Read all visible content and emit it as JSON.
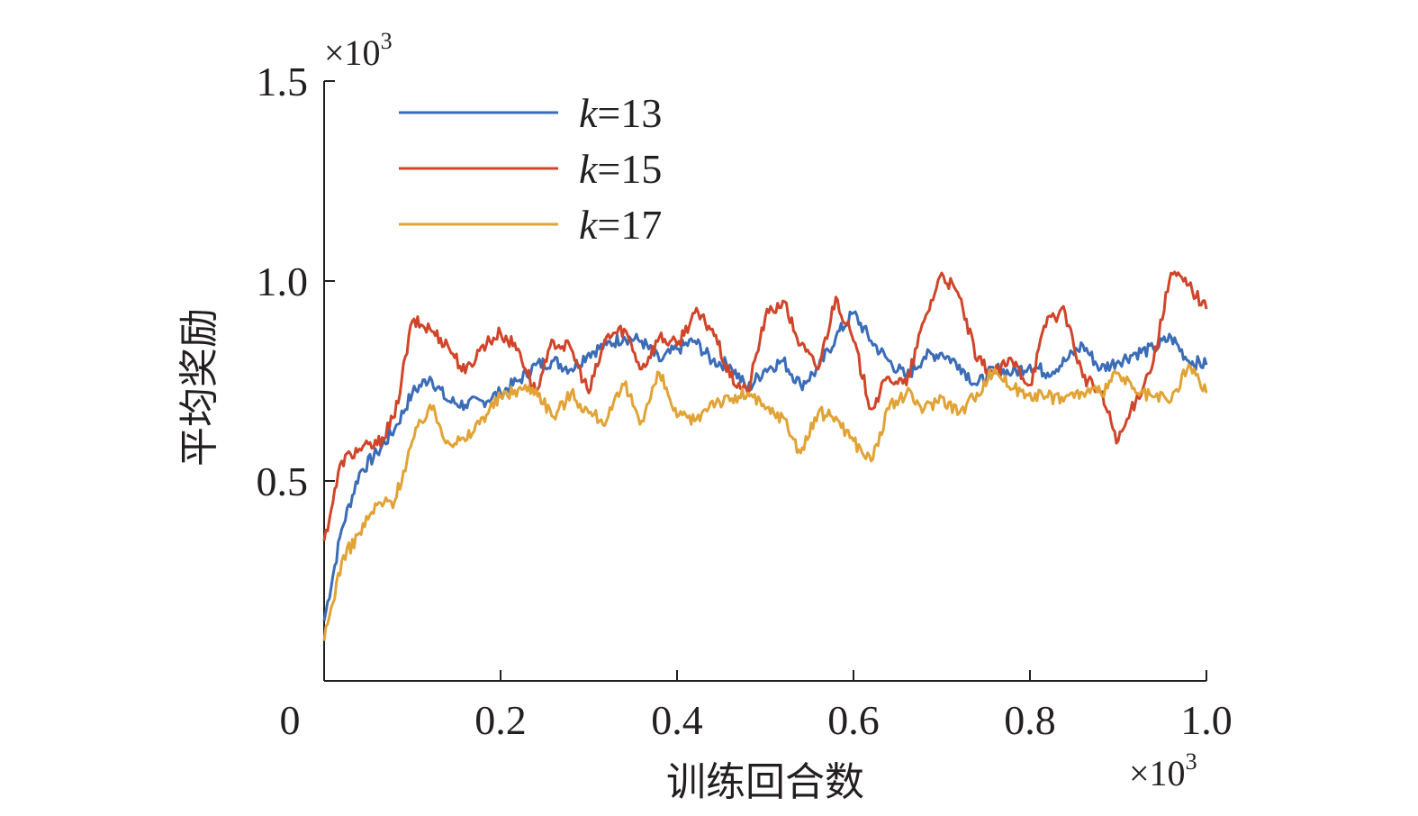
{
  "chart_data": {
    "type": "line",
    "xlabel": "训练回合数",
    "ylabel": "平均奖励",
    "x_multiplier": "×10",
    "x_multiplier_exp": "3",
    "y_multiplier": "×10",
    "y_multiplier_exp": "3",
    "xlim": [
      0,
      1.0
    ],
    "ylim": [
      0,
      1.5
    ],
    "x_ticks": [
      0,
      0.2,
      0.4,
      0.6,
      0.8,
      1.0
    ],
    "x_tick_labels": [
      "0",
      "0.2",
      "0.4",
      "0.6",
      "0.8",
      "1.0"
    ],
    "y_ticks": [
      0.5,
      1.0,
      1.5
    ],
    "y_tick_labels": [
      "0.5",
      "1.0",
      "1.5"
    ],
    "grid": false,
    "legend_position": "top-left",
    "x": [
      0.0,
      0.02,
      0.04,
      0.06,
      0.08,
      0.1,
      0.12,
      0.14,
      0.16,
      0.18,
      0.2,
      0.22,
      0.24,
      0.26,
      0.28,
      0.3,
      0.32,
      0.34,
      0.36,
      0.38,
      0.4,
      0.42,
      0.44,
      0.46,
      0.48,
      0.5,
      0.52,
      0.54,
      0.56,
      0.58,
      0.6,
      0.62,
      0.64,
      0.66,
      0.68,
      0.7,
      0.72,
      0.74,
      0.76,
      0.78,
      0.8,
      0.82,
      0.84,
      0.86,
      0.88,
      0.9,
      0.92,
      0.94,
      0.96,
      0.98,
      1.0
    ],
    "series": [
      {
        "name_italic": "k",
        "name_rest": "=13",
        "name": "k=13",
        "color": "#3b6cb7",
        "values": [
          0.15,
          0.38,
          0.52,
          0.57,
          0.63,
          0.72,
          0.76,
          0.7,
          0.69,
          0.7,
          0.72,
          0.75,
          0.79,
          0.8,
          0.78,
          0.82,
          0.84,
          0.86,
          0.85,
          0.8,
          0.83,
          0.85,
          0.8,
          0.79,
          0.73,
          0.78,
          0.8,
          0.74,
          0.78,
          0.86,
          0.92,
          0.85,
          0.8,
          0.76,
          0.81,
          0.82,
          0.79,
          0.74,
          0.78,
          0.77,
          0.79,
          0.77,
          0.8,
          0.84,
          0.78,
          0.8,
          0.82,
          0.83,
          0.86,
          0.8,
          0.79
        ]
      },
      {
        "name_italic": "k",
        "name_rest": "=15",
        "name": "k=15",
        "color": "#d0452a",
        "values": [
          0.35,
          0.55,
          0.58,
          0.59,
          0.66,
          0.9,
          0.88,
          0.84,
          0.77,
          0.84,
          0.87,
          0.83,
          0.72,
          0.85,
          0.83,
          0.72,
          0.86,
          0.88,
          0.78,
          0.86,
          0.84,
          0.92,
          0.88,
          0.76,
          0.72,
          0.91,
          0.95,
          0.84,
          0.78,
          0.96,
          0.85,
          0.68,
          0.76,
          0.74,
          0.9,
          1.02,
          0.96,
          0.8,
          0.77,
          0.8,
          0.74,
          0.91,
          0.92,
          0.76,
          0.72,
          0.6,
          0.7,
          0.8,
          1.02,
          0.99,
          0.93
        ]
      },
      {
        "name_italic": "k",
        "name_rest": "=17",
        "name": "k=17",
        "color": "#e2a336",
        "values": [
          0.1,
          0.3,
          0.37,
          0.44,
          0.45,
          0.6,
          0.69,
          0.6,
          0.6,
          0.66,
          0.71,
          0.73,
          0.73,
          0.66,
          0.72,
          0.67,
          0.65,
          0.74,
          0.65,
          0.77,
          0.66,
          0.65,
          0.7,
          0.7,
          0.72,
          0.68,
          0.66,
          0.57,
          0.67,
          0.66,
          0.6,
          0.55,
          0.68,
          0.72,
          0.68,
          0.71,
          0.67,
          0.72,
          0.78,
          0.73,
          0.72,
          0.71,
          0.71,
          0.72,
          0.72,
          0.77,
          0.72,
          0.71,
          0.7,
          0.79,
          0.72
        ]
      }
    ]
  }
}
